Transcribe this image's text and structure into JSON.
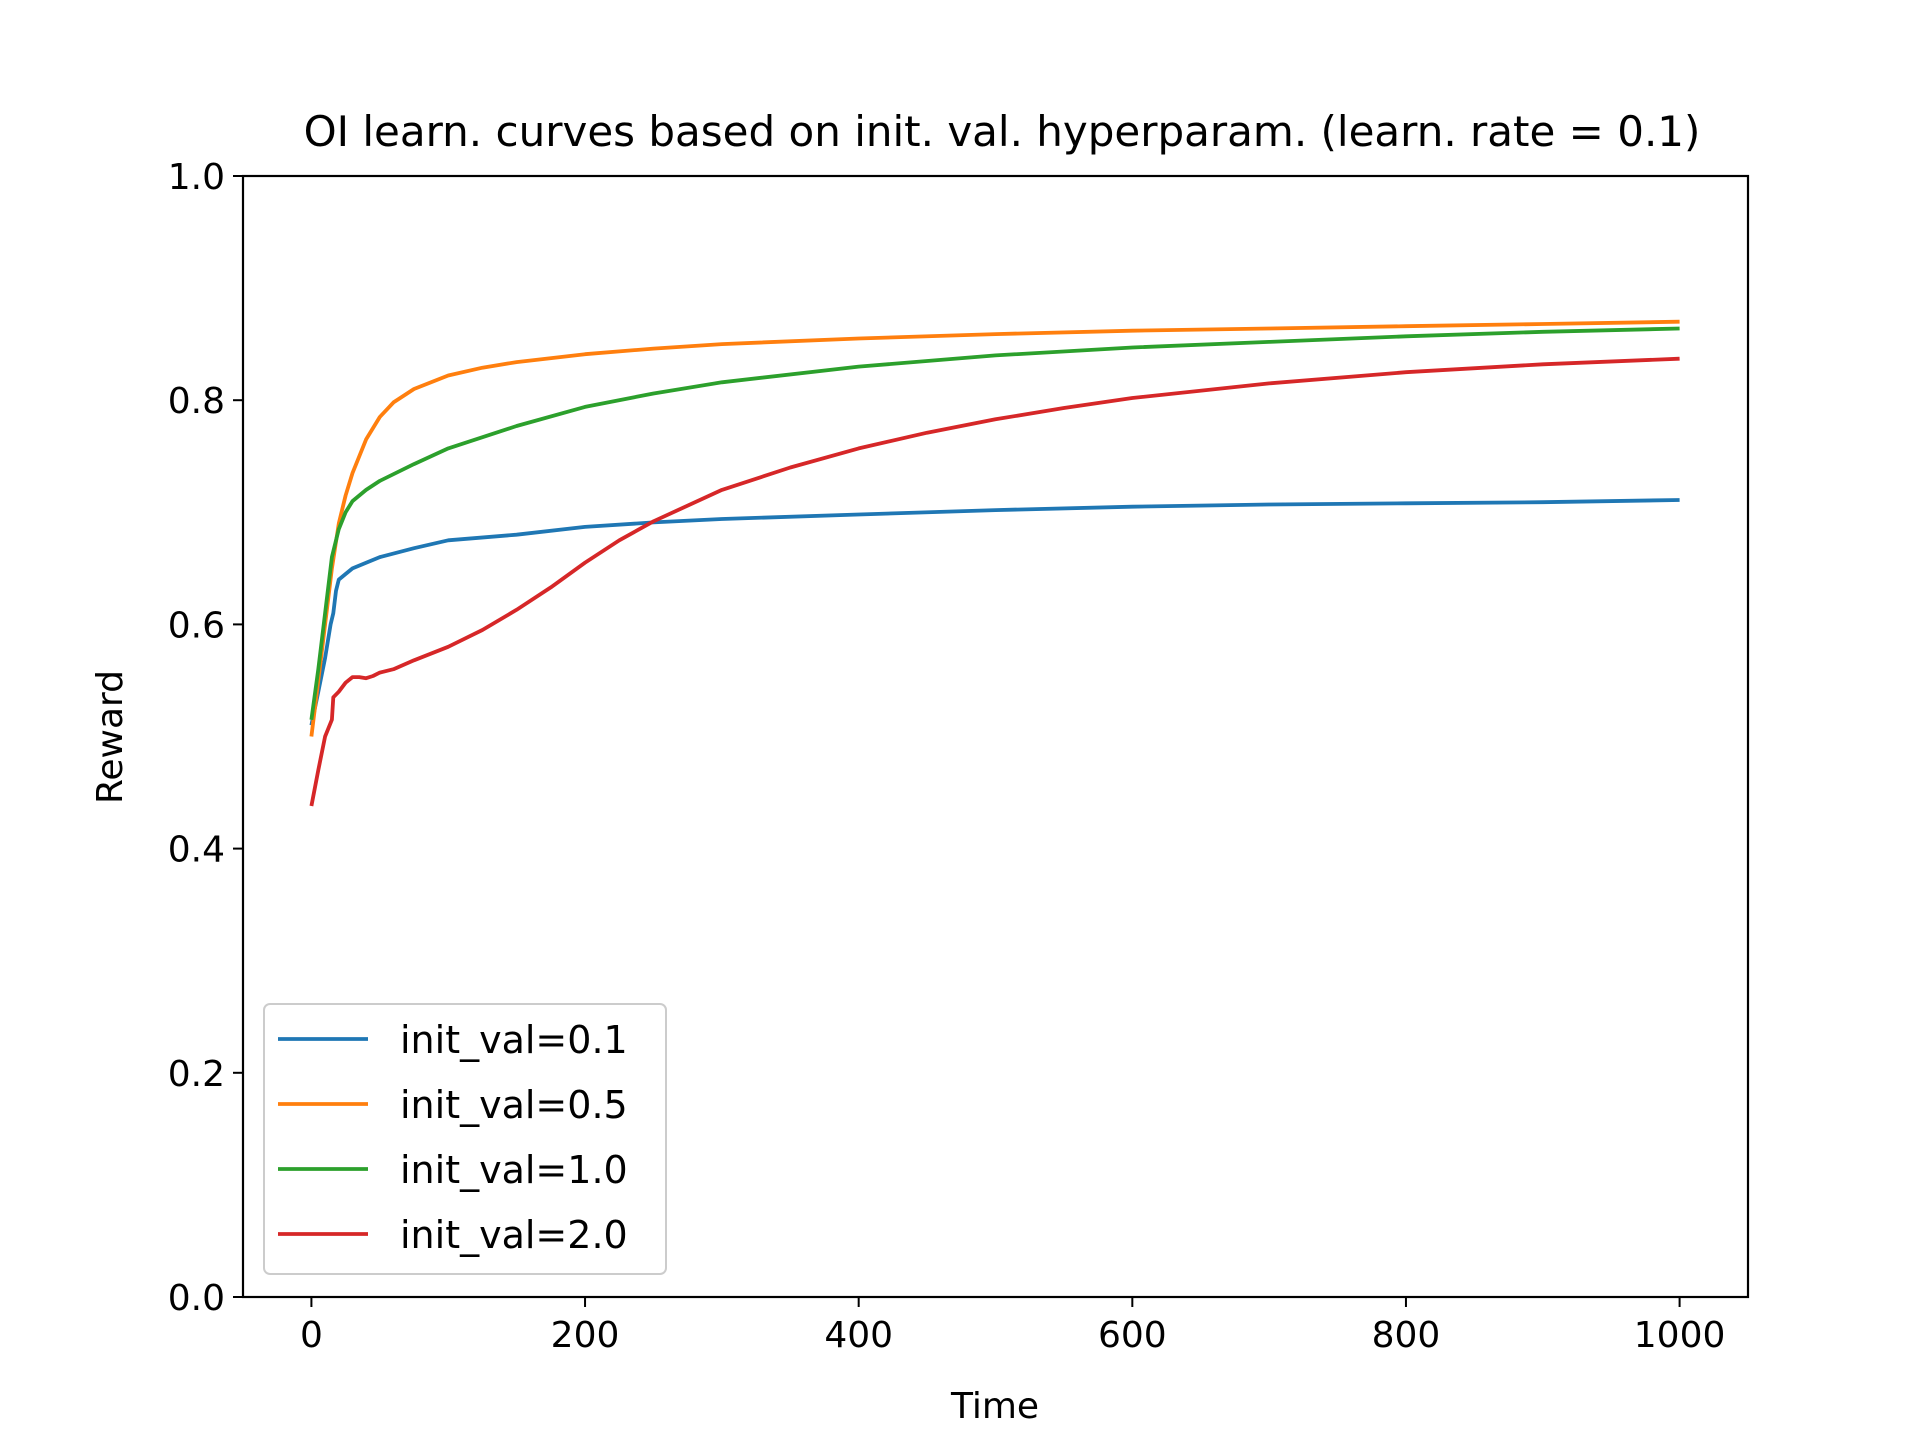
{
  "chart_data": {
    "type": "line",
    "title": "OI learn. curves based on init. val. hyperparam. (learn. rate = 0.1)",
    "xlabel": "Time",
    "ylabel": "Reward",
    "xlim": [
      -50,
      1050
    ],
    "ylim": [
      0,
      1
    ],
    "xticks": [
      0,
      200,
      400,
      600,
      800,
      1000
    ],
    "xtick_labels": [
      "0",
      "200",
      "400",
      "600",
      "800",
      "1000"
    ],
    "yticks": [
      0,
      0.2,
      0.4,
      0.6,
      0.8,
      1.0
    ],
    "ytick_labels": [
      "0.0",
      "0.2",
      "0.4",
      "0.6",
      "0.8",
      "1.0"
    ],
    "grid": false,
    "legend_position": "lower-left",
    "series": [
      {
        "name": "init_val=0.1",
        "color": "#1f77b4",
        "points": [
          [
            0,
            0.51
          ],
          [
            5,
            0.54
          ],
          [
            10,
            0.57
          ],
          [
            14,
            0.6
          ],
          [
            16,
            0.61
          ],
          [
            18,
            0.63
          ],
          [
            20,
            0.64
          ],
          [
            25,
            0.645
          ],
          [
            30,
            0.65
          ],
          [
            40,
            0.655
          ],
          [
            50,
            0.66
          ],
          [
            75,
            0.668
          ],
          [
            100,
            0.675
          ],
          [
            150,
            0.68
          ],
          [
            200,
            0.687
          ],
          [
            250,
            0.691
          ],
          [
            300,
            0.694
          ],
          [
            400,
            0.698
          ],
          [
            500,
            0.702
          ],
          [
            600,
            0.705
          ],
          [
            700,
            0.707
          ],
          [
            800,
            0.708
          ],
          [
            900,
            0.709
          ],
          [
            1000,
            0.711
          ]
        ]
      },
      {
        "name": "init_val=0.5",
        "color": "#ff7f0e",
        "points": [
          [
            0,
            0.5
          ],
          [
            5,
            0.55
          ],
          [
            10,
            0.6
          ],
          [
            15,
            0.65
          ],
          [
            20,
            0.69
          ],
          [
            25,
            0.715
          ],
          [
            30,
            0.735
          ],
          [
            40,
            0.765
          ],
          [
            50,
            0.785
          ],
          [
            60,
            0.798
          ],
          [
            75,
            0.81
          ],
          [
            100,
            0.822
          ],
          [
            125,
            0.829
          ],
          [
            150,
            0.834
          ],
          [
            200,
            0.841
          ],
          [
            250,
            0.846
          ],
          [
            300,
            0.85
          ],
          [
            400,
            0.855
          ],
          [
            500,
            0.859
          ],
          [
            600,
            0.862
          ],
          [
            700,
            0.864
          ],
          [
            800,
            0.866
          ],
          [
            900,
            0.868
          ],
          [
            1000,
            0.87
          ]
        ]
      },
      {
        "name": "init_val=1.0",
        "color": "#2ca02c",
        "points": [
          [
            0,
            0.515
          ],
          [
            5,
            0.56
          ],
          [
            10,
            0.61
          ],
          [
            15,
            0.66
          ],
          [
            20,
            0.685
          ],
          [
            25,
            0.7
          ],
          [
            30,
            0.71
          ],
          [
            40,
            0.72
          ],
          [
            50,
            0.728
          ],
          [
            75,
            0.743
          ],
          [
            100,
            0.757
          ],
          [
            150,
            0.777
          ],
          [
            200,
            0.794
          ],
          [
            250,
            0.806
          ],
          [
            300,
            0.816
          ],
          [
            400,
            0.83
          ],
          [
            500,
            0.84
          ],
          [
            600,
            0.847
          ],
          [
            700,
            0.852
          ],
          [
            800,
            0.857
          ],
          [
            900,
            0.861
          ],
          [
            1000,
            0.864
          ]
        ]
      },
      {
        "name": "init_val=2.0",
        "color": "#d62728",
        "points": [
          [
            0,
            0.438
          ],
          [
            5,
            0.47
          ],
          [
            10,
            0.5
          ],
          [
            15,
            0.515
          ],
          [
            16,
            0.535
          ],
          [
            20,
            0.54
          ],
          [
            25,
            0.548
          ],
          [
            30,
            0.553
          ],
          [
            35,
            0.553
          ],
          [
            40,
            0.552
          ],
          [
            45,
            0.554
          ],
          [
            50,
            0.557
          ],
          [
            60,
            0.56
          ],
          [
            75,
            0.568
          ],
          [
            100,
            0.58
          ],
          [
            125,
            0.595
          ],
          [
            150,
            0.613
          ],
          [
            175,
            0.633
          ],
          [
            200,
            0.655
          ],
          [
            225,
            0.675
          ],
          [
            250,
            0.692
          ],
          [
            300,
            0.72
          ],
          [
            350,
            0.74
          ],
          [
            400,
            0.757
          ],
          [
            450,
            0.771
          ],
          [
            500,
            0.783
          ],
          [
            550,
            0.793
          ],
          [
            600,
            0.802
          ],
          [
            700,
            0.815
          ],
          [
            800,
            0.825
          ],
          [
            900,
            0.832
          ],
          [
            1000,
            0.837
          ]
        ]
      }
    ]
  }
}
